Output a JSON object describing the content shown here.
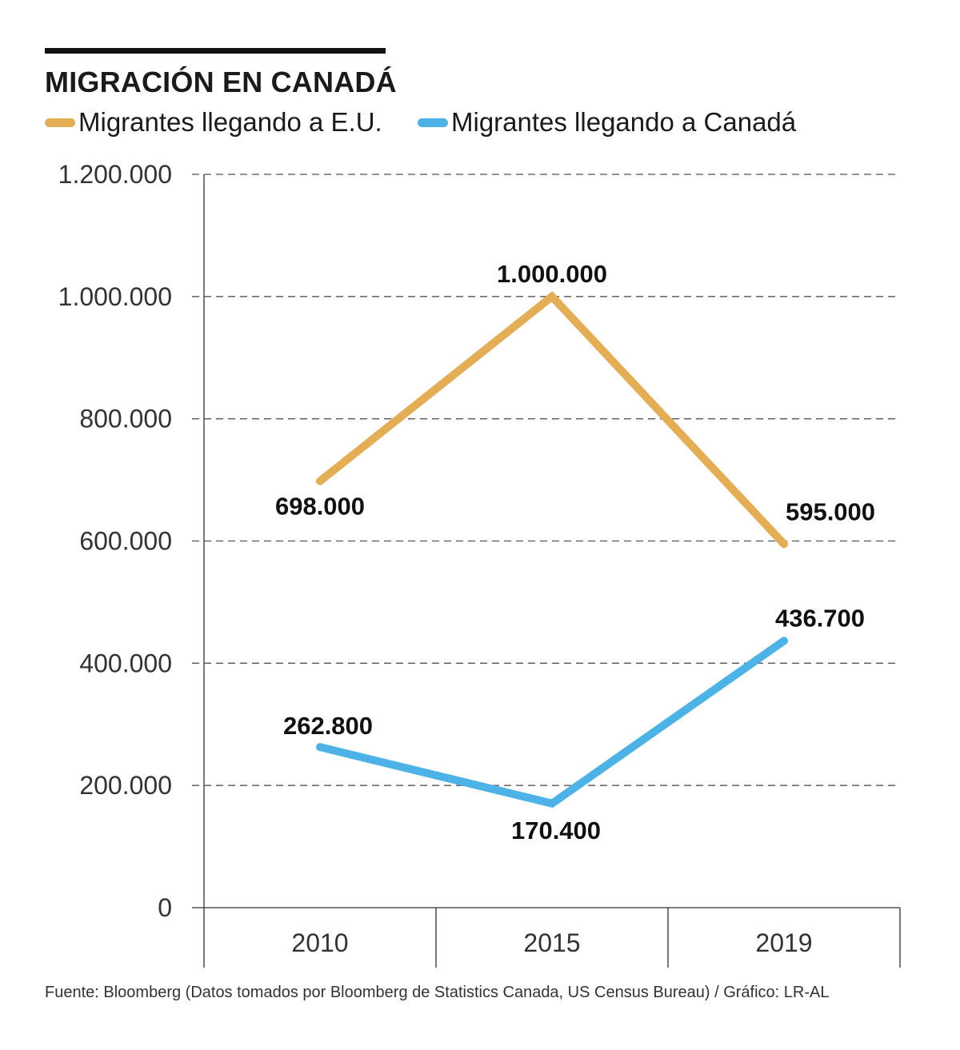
{
  "title": "MIGRACIÓN EN CANADÁ",
  "source": "Fuente: Bloomberg (Datos tomados por Bloomberg de Statistics Canada, US Census Bureau) / Gráfico: LR-AL",
  "colors": {
    "eu": "#E3AE55",
    "canada": "#4DB3E6",
    "grid": "#555555",
    "axis": "#333333"
  },
  "chart_data": {
    "type": "line",
    "title": "MIGRACIÓN EN CANADÁ",
    "xlabel": "",
    "ylabel": "",
    "categories": [
      "2010",
      "2015",
      "2019"
    ],
    "ylim": [
      0,
      1200000
    ],
    "yticks": [
      0,
      200000,
      400000,
      600000,
      800000,
      1000000,
      1200000
    ],
    "ytick_labels": [
      "0",
      "200.000",
      "400.000",
      "600.000",
      "800.000",
      "1.000.000",
      "1.200.000"
    ],
    "grid": true,
    "legend": "top-left",
    "series": [
      {
        "name": "Migrantes llegando a E.U.",
        "key": "eu",
        "values": [
          698000,
          1000000,
          595000
        ],
        "labels": [
          "698.000",
          "1.000.000",
          "595.000"
        ]
      },
      {
        "name": "Migrantes llegando a Canadá",
        "key": "canada",
        "values": [
          262800,
          170400,
          436700
        ],
        "labels": [
          "262.800",
          "170.400",
          "436.700"
        ]
      }
    ]
  }
}
